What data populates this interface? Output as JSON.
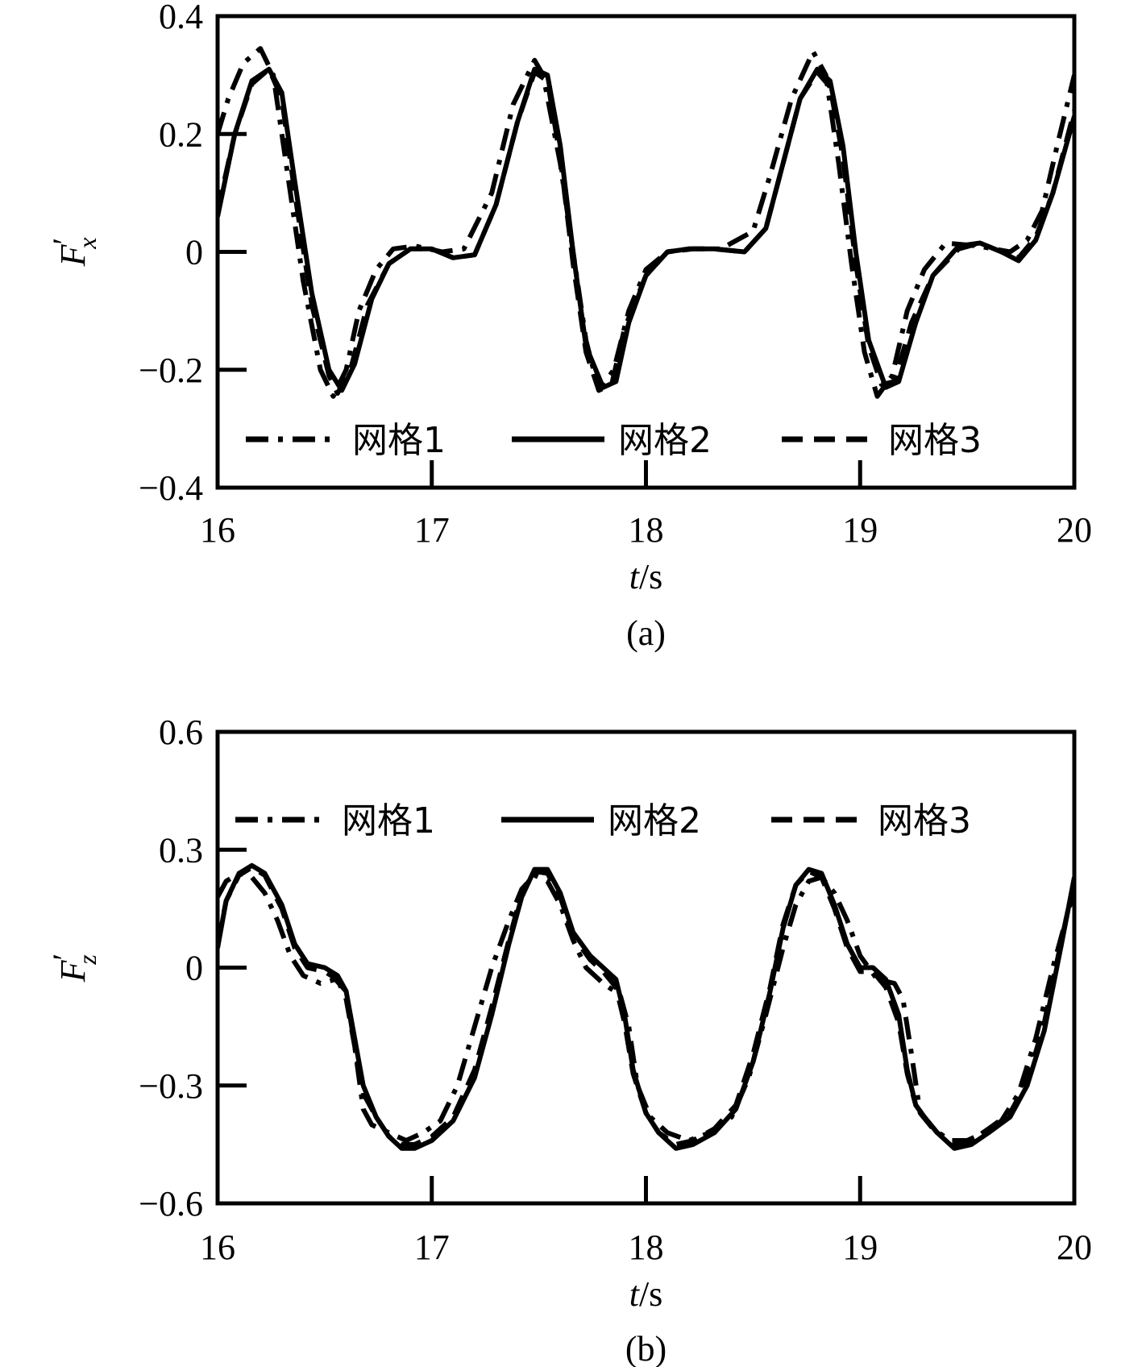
{
  "chart_data": [
    {
      "type": "line",
      "panel": "a",
      "caption": "(a)",
      "xlabel": {
        "var": "t",
        "unit": "/s"
      },
      "ylabel": {
        "base": "F",
        "prime": "′",
        "sub": "x"
      },
      "xlim": [
        16,
        20
      ],
      "ylim": [
        -0.4,
        0.4
      ],
      "xticks": [
        16,
        17,
        18,
        19,
        20
      ],
      "xtick_labels": [
        "16",
        "17",
        "18",
        "19",
        "20"
      ],
      "yticks": [
        -0.4,
        -0.2,
        0,
        0.2,
        0.4
      ],
      "ytick_labels": [
        "−0.4",
        "−0.2",
        "0",
        "0.2",
        "0.4"
      ],
      "grid": false,
      "legend_position": "bottom",
      "series": [
        {
          "name": "网格1",
          "dash": "dashdot",
          "width": 6,
          "x": [
            16.0,
            16.05,
            16.12,
            16.2,
            16.26,
            16.32,
            16.4,
            16.48,
            16.54,
            16.6,
            16.66,
            16.74,
            16.82,
            16.92,
            17.05,
            17.15,
            17.28,
            17.38,
            17.48,
            17.52,
            17.6,
            17.66,
            17.72,
            17.78,
            17.85,
            17.92,
            18.0,
            18.1,
            18.22,
            18.35,
            18.5,
            18.58,
            18.68,
            18.78,
            18.84,
            18.9,
            18.96,
            19.02,
            19.08,
            19.15,
            19.22,
            19.3,
            19.4,
            19.55,
            19.7,
            19.78,
            19.85,
            19.92,
            20.0
          ],
          "y": [
            0.2,
            0.26,
            0.32,
            0.345,
            0.3,
            0.15,
            -0.05,
            -0.2,
            -0.245,
            -0.2,
            -0.1,
            -0.03,
            0.005,
            0.01,
            0.0,
            0.005,
            0.1,
            0.25,
            0.325,
            0.3,
            0.15,
            0.0,
            -0.15,
            -0.235,
            -0.2,
            -0.1,
            -0.03,
            0.0,
            0.005,
            0.005,
            0.035,
            0.13,
            0.26,
            0.34,
            0.3,
            0.15,
            -0.02,
            -0.17,
            -0.245,
            -0.21,
            -0.1,
            -0.03,
            0.015,
            0.01,
            0.0,
            0.02,
            0.07,
            0.18,
            0.3
          ]
        },
        {
          "name": "网格2",
          "dash": "solid",
          "width": 6,
          "x": [
            16.0,
            16.08,
            16.16,
            16.24,
            16.3,
            16.36,
            16.44,
            16.52,
            16.58,
            16.64,
            16.72,
            16.8,
            16.9,
            17.0,
            17.1,
            17.2,
            17.3,
            17.4,
            17.48,
            17.54,
            17.6,
            17.66,
            17.72,
            17.8,
            17.86,
            17.92,
            18.0,
            18.1,
            18.2,
            18.32,
            18.46,
            18.56,
            18.64,
            18.72,
            18.8,
            18.86,
            18.92,
            18.98,
            19.04,
            19.12,
            19.18,
            19.26,
            19.34,
            19.46,
            19.56,
            19.66,
            19.74,
            19.82,
            19.9,
            20.0
          ],
          "y": [
            0.06,
            0.2,
            0.29,
            0.31,
            0.27,
            0.12,
            -0.07,
            -0.2,
            -0.235,
            -0.19,
            -0.08,
            -0.02,
            0.005,
            0.005,
            -0.01,
            -0.005,
            0.08,
            0.22,
            0.31,
            0.3,
            0.18,
            0.0,
            -0.16,
            -0.23,
            -0.22,
            -0.12,
            -0.04,
            0.0,
            0.005,
            0.005,
            0.0,
            0.04,
            0.15,
            0.26,
            0.31,
            0.29,
            0.18,
            0.0,
            -0.15,
            -0.23,
            -0.22,
            -0.12,
            -0.04,
            0.01,
            0.015,
            0.0,
            -0.015,
            0.02,
            0.1,
            0.23
          ]
        },
        {
          "name": "网格3",
          "dash": "dashed",
          "width": 6,
          "x": [
            16.0,
            16.08,
            16.16,
            16.24,
            16.3,
            16.36,
            16.44,
            16.52,
            16.56,
            16.62,
            16.7,
            16.8,
            16.9,
            17.0,
            17.1,
            17.2,
            17.3,
            17.4,
            17.48,
            17.54,
            17.6,
            17.66,
            17.72,
            17.78,
            17.84,
            17.9,
            18.0,
            18.1,
            18.2,
            18.32,
            18.46,
            18.56,
            18.64,
            18.72,
            18.8,
            18.86,
            18.92,
            18.98,
            19.04,
            19.1,
            19.16,
            19.24,
            19.34,
            19.46,
            19.56,
            19.66,
            19.74,
            19.82,
            19.9,
            20.0
          ],
          "y": [
            0.07,
            0.2,
            0.285,
            0.31,
            0.26,
            0.1,
            -0.09,
            -0.21,
            -0.24,
            -0.2,
            -0.09,
            -0.02,
            0.005,
            0.005,
            -0.01,
            -0.005,
            0.08,
            0.22,
            0.305,
            0.29,
            0.16,
            -0.02,
            -0.17,
            -0.235,
            -0.225,
            -0.13,
            -0.04,
            0.0,
            0.005,
            0.005,
            0.0,
            0.04,
            0.15,
            0.26,
            0.305,
            0.28,
            0.16,
            -0.02,
            -0.16,
            -0.225,
            -0.22,
            -0.12,
            -0.04,
            0.005,
            0.015,
            0.0,
            -0.01,
            0.025,
            0.1,
            0.24
          ]
        }
      ]
    },
    {
      "type": "line",
      "panel": "b",
      "caption": "(b)",
      "xlabel": {
        "var": "t",
        "unit": "/s"
      },
      "ylabel": {
        "base": "F",
        "prime": "′",
        "sub": "z"
      },
      "xlim": [
        16,
        20
      ],
      "ylim": [
        -0.6,
        0.6
      ],
      "xticks": [
        16,
        17,
        18,
        19,
        20
      ],
      "xtick_labels": [
        "16",
        "17",
        "18",
        "19",
        "20"
      ],
      "yticks": [
        -0.6,
        -0.3,
        0,
        0.3,
        0.6
      ],
      "ytick_labels": [
        "−0.6",
        "−0.3",
        "0",
        "0.3",
        "0.6"
      ],
      "grid": false,
      "legend_position": "top",
      "series": [
        {
          "name": "网格1",
          "dash": "dashdot",
          "width": 6,
          "x": [
            16.0,
            16.04,
            16.1,
            16.16,
            16.22,
            16.28,
            16.34,
            16.4,
            16.48,
            16.55,
            16.6,
            16.64,
            16.68,
            16.72,
            16.8,
            16.88,
            16.96,
            17.04,
            17.12,
            17.2,
            17.28,
            17.36,
            17.42,
            17.48,
            17.54,
            17.6,
            17.66,
            17.72,
            17.8,
            17.88,
            17.92,
            17.96,
            18.02,
            18.1,
            18.2,
            18.3,
            18.4,
            18.48,
            18.56,
            18.64,
            18.7,
            18.76,
            18.82,
            18.88,
            18.94,
            19.0,
            19.08,
            19.16,
            19.2,
            19.24,
            19.28,
            19.34,
            19.42,
            19.5,
            19.58,
            19.66,
            19.74,
            19.82,
            19.9,
            20.0
          ],
          "y": [
            0.18,
            0.22,
            0.24,
            0.23,
            0.19,
            0.12,
            0.03,
            -0.02,
            -0.04,
            -0.03,
            -0.06,
            -0.2,
            -0.36,
            -0.4,
            -0.42,
            -0.44,
            -0.42,
            -0.39,
            -0.3,
            -0.15,
            0.0,
            0.12,
            0.2,
            0.235,
            0.22,
            0.16,
            0.07,
            0.0,
            -0.04,
            -0.07,
            -0.15,
            -0.3,
            -0.38,
            -0.42,
            -0.44,
            -0.42,
            -0.38,
            -0.28,
            -0.12,
            0.05,
            0.16,
            0.22,
            0.23,
            0.19,
            0.12,
            0.03,
            -0.03,
            -0.04,
            -0.08,
            -0.22,
            -0.37,
            -0.41,
            -0.44,
            -0.44,
            -0.42,
            -0.39,
            -0.32,
            -0.18,
            0.0,
            0.2
          ]
        },
        {
          "name": "网格2",
          "dash": "solid",
          "width": 6,
          "x": [
            16.0,
            16.04,
            16.1,
            16.16,
            16.22,
            16.3,
            16.36,
            16.42,
            16.5,
            16.56,
            16.6,
            16.64,
            16.68,
            16.74,
            16.8,
            16.86,
            16.92,
            17.0,
            17.1,
            17.2,
            17.28,
            17.36,
            17.42,
            17.48,
            17.54,
            17.6,
            17.66,
            17.74,
            17.8,
            17.86,
            17.9,
            17.94,
            18.0,
            18.06,
            18.14,
            18.22,
            18.32,
            18.42,
            18.5,
            18.58,
            18.64,
            18.7,
            18.76,
            18.82,
            18.88,
            18.94,
            19.0,
            19.06,
            19.12,
            19.18,
            19.22,
            19.26,
            19.3,
            19.36,
            19.44,
            19.52,
            19.6,
            19.7,
            19.78,
            19.86,
            19.94,
            20.0
          ],
          "y": [
            0.05,
            0.17,
            0.24,
            0.26,
            0.24,
            0.16,
            0.06,
            0.01,
            0.0,
            -0.02,
            -0.06,
            -0.18,
            -0.3,
            -0.38,
            -0.43,
            -0.46,
            -0.46,
            -0.44,
            -0.39,
            -0.28,
            -0.12,
            0.06,
            0.18,
            0.25,
            0.25,
            0.19,
            0.09,
            0.03,
            0.0,
            -0.03,
            -0.12,
            -0.26,
            -0.37,
            -0.42,
            -0.46,
            -0.45,
            -0.42,
            -0.36,
            -0.24,
            -0.06,
            0.1,
            0.21,
            0.25,
            0.24,
            0.16,
            0.06,
            0.0,
            0.0,
            -0.03,
            -0.12,
            -0.26,
            -0.35,
            -0.38,
            -0.42,
            -0.46,
            -0.45,
            -0.42,
            -0.38,
            -0.3,
            -0.16,
            0.06,
            0.23
          ]
        },
        {
          "name": "网格3",
          "dash": "dashed",
          "width": 6,
          "x": [
            16.0,
            16.04,
            16.1,
            16.16,
            16.22,
            16.3,
            16.36,
            16.42,
            16.5,
            16.56,
            16.6,
            16.64,
            16.68,
            16.74,
            16.8,
            16.86,
            16.92,
            17.0,
            17.1,
            17.2,
            17.28,
            17.36,
            17.42,
            17.48,
            17.54,
            17.6,
            17.66,
            17.74,
            17.8,
            17.86,
            17.9,
            17.94,
            18.0,
            18.06,
            18.14,
            18.22,
            18.32,
            18.42,
            18.5,
            18.58,
            18.64,
            18.7,
            18.76,
            18.82,
            18.88,
            18.94,
            19.0,
            19.06,
            19.12,
            19.18,
            19.22,
            19.26,
            19.3,
            19.36,
            19.44,
            19.52,
            19.6,
            19.7,
            19.78,
            19.86,
            19.94,
            20.0
          ],
          "y": [
            0.06,
            0.17,
            0.235,
            0.255,
            0.235,
            0.15,
            0.05,
            0.0,
            -0.01,
            -0.03,
            -0.08,
            -0.2,
            -0.32,
            -0.38,
            -0.43,
            -0.45,
            -0.45,
            -0.43,
            -0.38,
            -0.26,
            -0.1,
            0.07,
            0.19,
            0.245,
            0.24,
            0.18,
            0.08,
            0.02,
            -0.01,
            -0.05,
            -0.14,
            -0.27,
            -0.37,
            -0.42,
            -0.45,
            -0.44,
            -0.41,
            -0.35,
            -0.22,
            -0.05,
            0.11,
            0.21,
            0.245,
            0.23,
            0.15,
            0.05,
            -0.01,
            -0.01,
            -0.05,
            -0.14,
            -0.27,
            -0.35,
            -0.38,
            -0.42,
            -0.45,
            -0.44,
            -0.41,
            -0.37,
            -0.29,
            -0.14,
            0.07,
            0.22
          ]
        }
      ]
    }
  ]
}
